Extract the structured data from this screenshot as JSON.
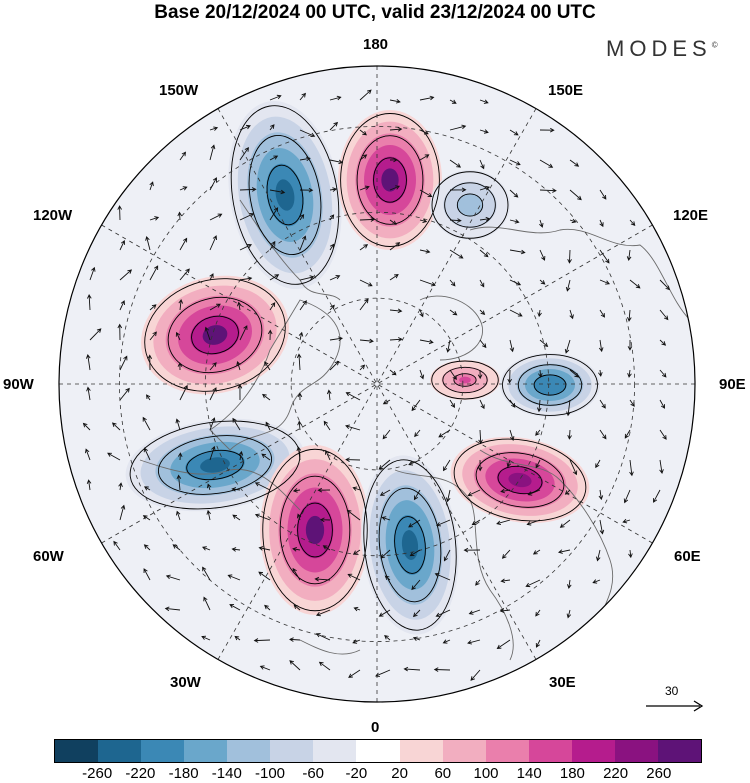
{
  "title": "Base 20/12/2024 00 UTC, valid 23/12/2024 00 UTC",
  "brand": "MODES",
  "brand_mark": "©",
  "longitude_labels": {
    "l180": "180",
    "l150W": "150W",
    "l150E": "150E",
    "l120W": "120W",
    "l120E": "120E",
    "l90W": "90W",
    "l90E": "90E",
    "l60W": "60W",
    "l60E": "60E",
    "l30W": "30W",
    "l30E": "30E",
    "l0": "0"
  },
  "vector_scale_label": "30",
  "colorbar": {
    "ticks": [
      "-260",
      "-220",
      "-180",
      "-140",
      "-100",
      "-60",
      "-20",
      "20",
      "60",
      "100",
      "140",
      "180",
      "220",
      "260"
    ],
    "colors": [
      "#10405f",
      "#1e6690",
      "#3b88b5",
      "#6aa7cb",
      "#a1c0dc",
      "#c8d3e6",
      "#e3e6f0",
      "#ffffff",
      "#f8d5d5",
      "#f2aec0",
      "#ea7fac",
      "#d6479a",
      "#b51c8d",
      "#8a1280",
      "#5e1377"
    ]
  },
  "anomaly_centers": [
    {
      "sign": "negative",
      "lon_label": "150W",
      "intensity": -260
    },
    {
      "sign": "positive",
      "lon_label": "180",
      "intensity": 260
    },
    {
      "sign": "positive",
      "lon_label": "120W",
      "intensity": 260
    },
    {
      "sign": "negative",
      "lon_label": "60W",
      "intensity": -260
    },
    {
      "sign": "positive",
      "lon_label": "30W",
      "intensity": 260
    },
    {
      "sign": "negative",
      "lon_label": "0",
      "intensity": -260
    },
    {
      "sign": "positive",
      "lon_label": "60E",
      "intensity": 220
    },
    {
      "sign": "negative",
      "lon_label": "90E",
      "intensity": -220
    },
    {
      "sign": "negative",
      "lon_label": "150E",
      "intensity": -140
    },
    {
      "sign": "positive",
      "lon_label": "90E",
      "intensity": 140
    }
  ]
}
